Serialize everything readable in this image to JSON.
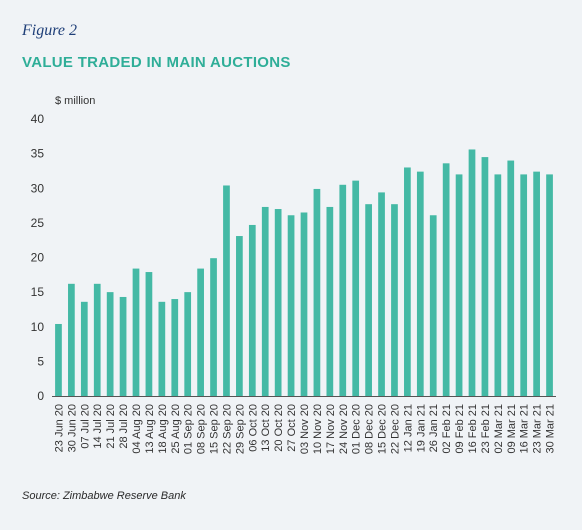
{
  "figure_label": "Figure 2",
  "title": "VALUE TRADED IN MAIN AUCTIONS",
  "source": "Source: Zimbabwe Reserve Bank",
  "colors": {
    "bar": "#44b9a5",
    "background": "#f0f3f6",
    "title": "#2fae98",
    "label": "#1f3f78"
  },
  "chart_data": {
    "type": "bar",
    "ylabel": "$ million",
    "ylim": [
      0,
      40
    ],
    "yticks": [
      0,
      5,
      10,
      15,
      20,
      25,
      30,
      35,
      40
    ],
    "grid": false,
    "categories": [
      "23 Jun 20",
      "30 Jun 20",
      "07 Jul 20",
      "14 Jul 20",
      "21 Jul 20",
      "28 Jul 20",
      "04 Aug 20",
      "13 Aug 20",
      "18 Aug 20",
      "25 Aug 20",
      "01 Sep 20",
      "08 Sep 20",
      "15 Sep 20",
      "22 Sep 20",
      "29 Sep 20",
      "06 Oct 20",
      "13 Oct 20",
      "20 Oct 20",
      "27 Oct 20",
      "03 Nov 20",
      "10 Nov 20",
      "17 Nov 20",
      "24 Nov 20",
      "01 Dec 20",
      "08 Dec 20",
      "15 Dec 20",
      "22 Dec 20",
      "12 Jan 21",
      "19 Jan 21",
      "26 Jan 21",
      "02 Feb 21",
      "09 Feb 21",
      "16 Feb 21",
      "23 Feb 21",
      "02 Mar 21",
      "09 Mar 21",
      "16 Mar 21",
      "23 Mar 21",
      "30 Mar 21"
    ],
    "values": [
      10.4,
      16.2,
      13.6,
      16.2,
      15.0,
      14.3,
      18.4,
      17.9,
      13.6,
      14.0,
      15.0,
      18.4,
      19.9,
      30.4,
      23.1,
      24.7,
      27.3,
      27.0,
      26.1,
      26.5,
      29.9,
      27.3,
      30.5,
      31.1,
      27.7,
      29.4,
      27.7,
      33.0,
      32.4,
      26.1,
      33.6,
      32.0,
      35.6,
      34.5,
      32.0,
      34.0,
      32.0,
      32.4,
      32.0
    ]
  }
}
